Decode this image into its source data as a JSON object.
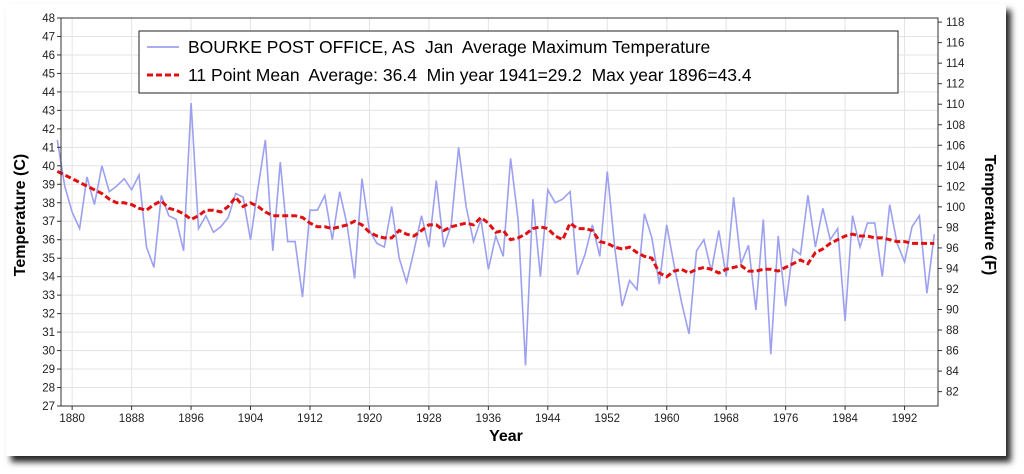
{
  "chart_data": {
    "type": "line",
    "xlabel": "Year",
    "ylabel": "Temperature (C)",
    "ylabel_right": "Temperature (F)",
    "xlim": [
      1878.5,
      1996.5
    ],
    "ylim": [
      27,
      48
    ],
    "ylim_right_f": [
      80.6,
      118.4
    ],
    "x_ticks": [
      1880,
      1888,
      1896,
      1904,
      1912,
      1920,
      1928,
      1936,
      1944,
      1952,
      1960,
      1968,
      1976,
      1984,
      1992
    ],
    "y_ticks": [
      27,
      28,
      29,
      30,
      31,
      32,
      33,
      34,
      35,
      36,
      37,
      38,
      39,
      40,
      41,
      42,
      43,
      44,
      45,
      46,
      47,
      48
    ],
    "y_ticks_right": [
      82,
      84,
      86,
      88,
      90,
      92,
      94,
      96,
      98,
      100,
      102,
      104,
      106,
      108,
      110,
      112,
      114,
      116,
      118
    ],
    "grid": true,
    "legend": "top-right",
    "colors": {
      "series": "#9da0f0",
      "mean": "#e01010"
    },
    "years_start": 1878,
    "series": [
      {
        "name": "BOURKE POST OFFICE, AS  Jan  Average Maximum Temperature",
        "style": "solid",
        "values": [
          41.4,
          38.9,
          37.5,
          36.6,
          39.4,
          37.9,
          40.0,
          38.6,
          38.9,
          39.3,
          38.7,
          39.5,
          35.6,
          34.5,
          38.4,
          37.3,
          37.1,
          35.4,
          43.4,
          36.6,
          37.3,
          36.4,
          36.7,
          37.2,
          38.5,
          38.3,
          36.0,
          38.8,
          41.4,
          35.4,
          40.2,
          35.9,
          35.9,
          32.9,
          37.6,
          37.6,
          38.4,
          36.0,
          38.6,
          36.8,
          33.9,
          39.3,
          36.5,
          35.8,
          35.6,
          37.8,
          35.0,
          33.7,
          35.4,
          37.3,
          35.6,
          39.2,
          35.6,
          36.8,
          41.0,
          37.8,
          35.9,
          37.1,
          34.4,
          36.2,
          35.1,
          40.4,
          37.1,
          29.2,
          38.2,
          34.0,
          38.7,
          38.0,
          38.2,
          38.6,
          34.1,
          35.2,
          36.8,
          35.1,
          39.7,
          35.6,
          32.4,
          33.8,
          33.3,
          37.4,
          36.1,
          33.6,
          36.8,
          34.6,
          32.6,
          30.9,
          35.4,
          36.0,
          34.3,
          36.5,
          34.0,
          38.3,
          34.7,
          35.7,
          32.2,
          37.1,
          29.8,
          36.2,
          32.4,
          35.5,
          35.2,
          38.4,
          35.6,
          37.7,
          36.0,
          36.6,
          31.6,
          37.3,
          35.6,
          36.9,
          36.9,
          34.0,
          37.9,
          35.8,
          34.8,
          36.7,
          37.3,
          33.1,
          36.3
        ]
      },
      {
        "name": "11 Point Mean  Average: 36.4  Min year 1941=29.2  Max year 1896=43.4",
        "style": "dashed",
        "values": [
          39.7,
          39.5,
          39.3,
          39.1,
          38.9,
          38.7,
          38.5,
          38.2,
          38.0,
          38.0,
          37.9,
          37.7,
          37.6,
          37.9,
          38.1,
          37.7,
          37.6,
          37.4,
          37.1,
          37.3,
          37.6,
          37.6,
          37.5,
          37.8,
          38.3,
          37.8,
          38.0,
          37.8,
          37.5,
          37.3,
          37.3,
          37.3,
          37.3,
          37.2,
          36.9,
          36.7,
          36.7,
          36.6,
          36.7,
          36.8,
          37.0,
          36.8,
          36.4,
          36.2,
          36.1,
          36.1,
          36.5,
          36.3,
          36.2,
          36.5,
          36.8,
          36.8,
          36.5,
          36.7,
          36.8,
          36.9,
          36.8,
          37.2,
          36.9,
          36.4,
          36.5,
          36.0,
          36.1,
          36.3,
          36.6,
          36.7,
          36.6,
          36.2,
          36.0,
          36.9,
          36.6,
          36.6,
          36.5,
          35.9,
          35.8,
          35.6,
          35.5,
          35.6,
          35.3,
          35.1,
          35.0,
          34.2,
          34.0,
          34.3,
          34.4,
          34.2,
          34.4,
          34.5,
          34.4,
          34.2,
          34.4,
          34.5,
          34.6,
          34.3,
          34.3,
          34.4,
          34.4,
          34.3,
          34.5,
          34.7,
          34.9,
          34.7,
          35.3,
          35.5,
          35.8,
          36.0,
          36.2,
          36.3,
          36.2,
          36.2,
          36.1,
          36.1,
          36.0,
          35.9,
          35.9,
          35.8,
          35.8,
          35.8,
          35.8
        ]
      }
    ]
  }
}
